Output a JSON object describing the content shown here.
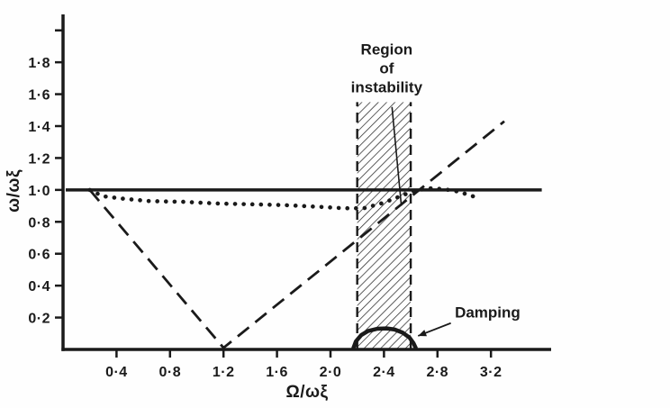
{
  "figure": {
    "background": "#fefefe",
    "ink": "#1a1a1a"
  },
  "chart_data": {
    "type": "line",
    "title": "",
    "xlabel": "Ω/ωξ",
    "ylabel": "ω/ωξ",
    "xlim": [
      0,
      3.65
    ],
    "ylim": [
      0,
      2.1
    ],
    "grid": false,
    "legend": "none",
    "x_ticks": [
      0.4,
      0.8,
      1.2,
      1.6,
      2.0,
      2.4,
      2.8,
      3.2
    ],
    "x_tick_labels": [
      "0·4",
      "0·8",
      "1·2",
      "1·6",
      "2·0",
      "2·4",
      "2·8",
      "3·2"
    ],
    "y_ticks": [
      0.2,
      0.4,
      0.6,
      0.8,
      1.0,
      1.2,
      1.4,
      1.6,
      1.8,
      2.0
    ],
    "y_tick_labels": [
      "0·2",
      "0·4",
      "0·6",
      "0·8",
      "1·0",
      "1·2",
      "1·4",
      "1·6",
      "1·8",
      ""
    ],
    "series": [
      {
        "name": "whirl-frequency-unity-line",
        "style": "solid",
        "width": 3.5,
        "points": [
          [
            0.02,
            1.0
          ],
          [
            3.58,
            1.0
          ]
        ]
      },
      {
        "name": "damped-natural-frequency-dotted",
        "style": "dotted",
        "width": 4.6,
        "points": [
          [
            0.2,
            1.0
          ],
          [
            0.3,
            0.96
          ],
          [
            0.45,
            0.945
          ],
          [
            0.65,
            0.93
          ],
          [
            0.9,
            0.925
          ],
          [
            1.15,
            0.915
          ],
          [
            1.4,
            0.91
          ],
          [
            1.65,
            0.905
          ],
          [
            1.9,
            0.895
          ],
          [
            2.1,
            0.885
          ],
          [
            2.25,
            0.885
          ],
          [
            2.4,
            0.92
          ],
          [
            2.55,
            0.97
          ],
          [
            2.65,
            1.0
          ],
          [
            2.75,
            1.01
          ],
          [
            2.85,
            1.005
          ],
          [
            2.95,
            0.99
          ],
          [
            3.05,
            0.965
          ],
          [
            3.1,
            0.95
          ]
        ]
      },
      {
        "name": "excitation-frequency-dashed",
        "style": "dashed",
        "width": 2.8,
        "points": [
          [
            0.2,
            1.0
          ],
          [
            1.2,
            0.01
          ],
          [
            3.3,
            1.43
          ]
        ]
      },
      {
        "name": "damping-curve",
        "style": "solid",
        "width": 4.5,
        "points": [
          [
            2.17,
            0.005
          ],
          [
            2.19,
            0.05
          ],
          [
            2.23,
            0.09
          ],
          [
            2.28,
            0.115
          ],
          [
            2.35,
            0.13
          ],
          [
            2.42,
            0.132
          ],
          [
            2.48,
            0.125
          ],
          [
            2.54,
            0.105
          ],
          [
            2.59,
            0.075
          ],
          [
            2.62,
            0.04
          ],
          [
            2.64,
            0.005
          ]
        ]
      }
    ],
    "instability_band": {
      "x0": 2.2,
      "x1": 2.6,
      "y0": 0.0,
      "y1": 1.55
    },
    "annotations": {
      "region_label": {
        "lines": [
          "Region",
          "of",
          "instability"
        ],
        "x": 2.42,
        "y": 1.85,
        "line_height_px": 21
      },
      "region_pointer": {
        "x1": 2.46,
        "y1": 1.52,
        "x2": 2.53,
        "y2": 0.9
      },
      "damping_label": {
        "text": "Damping",
        "x": 2.93,
        "y": 0.2
      },
      "damping_pointer": {
        "x1": 2.9,
        "y1": 0.165,
        "x2": 2.655,
        "y2": 0.085
      }
    }
  }
}
